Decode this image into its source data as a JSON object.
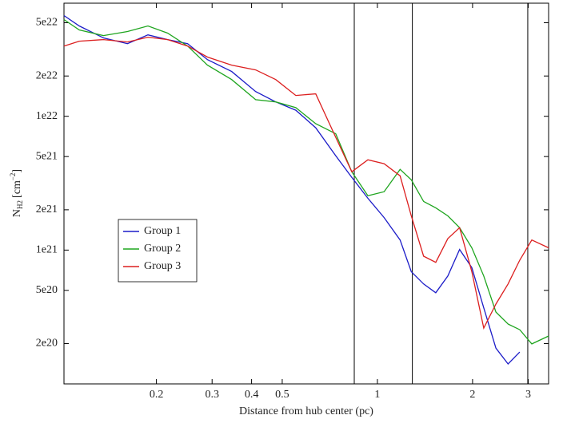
{
  "chart_data": {
    "type": "line",
    "xlabel": "Distance from hub center (pc)",
    "ylabel": {
      "symbol": "N",
      "subscript": "H2",
      "unit": "[cm",
      "exponent": "−2",
      "close": "]"
    },
    "log_x": true,
    "log_y": true,
    "xlim": [
      0.102,
      3.48
    ],
    "ylim": [
      1e+20,
      7e+22
    ],
    "xticks": [
      0.2,
      0.3,
      0.4,
      0.5,
      1,
      2,
      3
    ],
    "yticks": [
      {
        "value": 2e+20,
        "label": "2e20"
      },
      {
        "value": 5e+20,
        "label": "5e20"
      },
      {
        "value": 1e+21,
        "label": "1e21"
      },
      {
        "value": 2e+21,
        "label": "2e21"
      },
      {
        "value": 5e+21,
        "label": "5e21"
      },
      {
        "value": 1e+22,
        "label": "1e22"
      },
      {
        "value": 2e+22,
        "label": "2e22"
      },
      {
        "value": 5e+22,
        "label": "5e22"
      }
    ],
    "vlines": [
      0.845,
      1.29,
      2.99
    ],
    "legend": "lower-left",
    "x": [
      0.102,
      0.114,
      0.136,
      0.162,
      0.188,
      0.217,
      0.251,
      0.29,
      0.346,
      0.412,
      0.477,
      0.552,
      0.638,
      0.738,
      0.83,
      0.933,
      1.05,
      1.18,
      1.28,
      1.4,
      1.53,
      1.67,
      1.82,
      1.99,
      2.17,
      2.37,
      2.59,
      2.82,
      3.08,
      3.48
    ],
    "series": [
      {
        "name": "Group 1",
        "color": "#1c1cc8",
        "values": [
          5.66e+22,
          4.73e+22,
          3.85e+22,
          3.49e+22,
          4.06e+22,
          3.74e+22,
          3.49e+22,
          2.65e+22,
          2.16e+22,
          1.53e+22,
          1.28e+22,
          1.11e+22,
          8.2e+21,
          5.07e+21,
          3.49e+21,
          2.44e+21,
          1.75e+21,
          1.19e+21,
          6.9e+20,
          5.58e+20,
          4.8e+20,
          6.4e+20,
          1.01e+21,
          7.4e+20,
          3.7e+20,
          1.85e+20,
          1.41e+20,
          1.73e+20,
          null,
          null
        ]
      },
      {
        "name": "Group 2",
        "color": "#1fa51f",
        "values": [
          5.28e+22,
          4.42e+22,
          4.01e+22,
          4.3e+22,
          4.73e+22,
          4.18e+22,
          3.35e+22,
          2.41e+22,
          1.88e+22,
          1.33e+22,
          1.28e+22,
          1.16e+22,
          8.8e+21,
          7.4e+21,
          3.85e+21,
          2.55e+21,
          2.73e+21,
          4.01e+21,
          3.35e+21,
          2.31e+21,
          2.07e+21,
          1.8e+21,
          1.47e+21,
          1.04e+21,
          6.4e+20,
          3.44e+20,
          2.8e+20,
          2.54e+20,
          1.99e+20,
          2.28e+20
        ]
      },
      {
        "name": "Group 3",
        "color": "#dc1f1f",
        "values": [
          3.35e+22,
          3.64e+22,
          3.74e+22,
          3.59e+22,
          3.9e+22,
          3.74e+22,
          3.35e+22,
          2.77e+22,
          2.41e+22,
          2.22e+22,
          1.88e+22,
          1.43e+22,
          1.47e+22,
          6.97e+21,
          3.85e+21,
          4.73e+21,
          4.42e+21,
          3.59e+21,
          1.8e+21,
          9e+20,
          8.1e+20,
          1.22e+21,
          1.47e+21,
          6.9e+20,
          2.61e+20,
          3.95e+20,
          5.58e+20,
          8.4e+20,
          1.19e+21,
          1.04e+21
        ]
      }
    ]
  }
}
